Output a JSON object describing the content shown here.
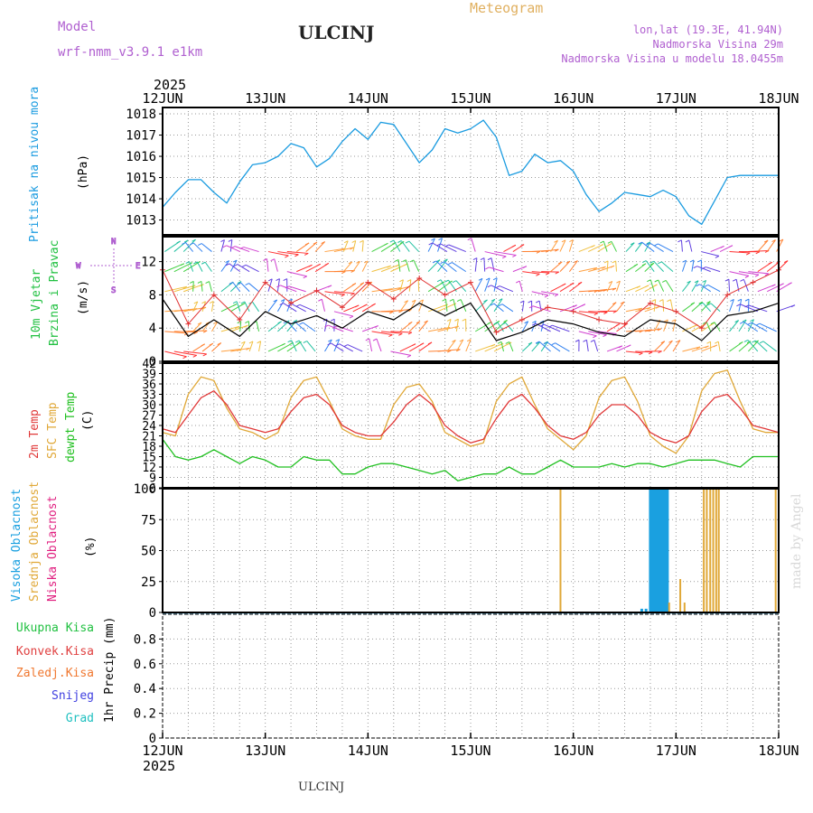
{
  "header": {
    "model_label": "Model",
    "model_name": "wrf-nmm_v3.9.1  e1km",
    "station": "ULCINJ",
    "meteogram": "Meteogram",
    "lonlat": "lon,lat (19.3E, 41.94N)",
    "elevation": "Nadmorska Visina 29m",
    "model_elevation": "Nadmorska Visina u modelu 18.0455m",
    "year_top": "2025",
    "year_bottom": "2025",
    "footer_station": "ULCINJ",
    "watermark": "made by Angel",
    "compass": {
      "n": "N",
      "s": "S",
      "w": "W",
      "e": "E"
    }
  },
  "colors": {
    "pressure": "#1a9be0",
    "wind_speed": "#000000",
    "wind_gust": "#e03030",
    "t2m": "#e03838",
    "sfc": "#e0a838",
    "dewpt": "#20c020",
    "high_cloud": "#1aa0e0",
    "mid_cloud": "#e0a838",
    "low_cloud": "#e02080",
    "rain": "#20c040",
    "conv_rain": "#e04040",
    "frz_rain": "#f07830",
    "snow": "#4040e0",
    "hail": "#20c0c0",
    "compass": "#b060d0",
    "title_purple": "#b060d0"
  },
  "chart_data": [
    {
      "panel": "pressure",
      "type": "line",
      "ylabel_a": "Pritisak na nivou mora",
      "ylabel_unit": "(hPa)",
      "x_ticks": [
        "12JUN",
        "13JUN",
        "14JUN",
        "15JUN",
        "16JUN",
        "17JUN",
        "18JUN"
      ],
      "y_ticks": [
        1013,
        1014,
        1015,
        1016,
        1017,
        1018
      ],
      "ylim": [
        1012.3,
        1018.3
      ],
      "x": [
        0,
        3,
        6,
        9,
        12,
        15,
        18,
        21,
        24,
        27,
        30,
        33,
        36,
        39,
        42,
        45,
        48,
        51,
        54,
        57,
        60,
        63,
        66,
        69,
        72,
        75,
        78,
        81,
        84,
        87,
        90,
        93,
        96,
        99,
        102,
        105,
        108,
        111,
        114,
        117,
        120,
        123,
        126,
        129,
        132,
        135,
        138,
        141,
        144
      ],
      "y": [
        1013.6,
        1014.3,
        1014.9,
        1014.9,
        1014.3,
        1013.8,
        1014.8,
        1015.6,
        1015.7,
        1016.0,
        1016.6,
        1016.4,
        1015.5,
        1015.9,
        1016.7,
        1017.3,
        1016.8,
        1017.6,
        1017.5,
        1016.6,
        1015.7,
        1016.3,
        1017.3,
        1017.1,
        1017.3,
        1017.7,
        1016.9,
        1015.1,
        1015.3,
        1016.1,
        1015.7,
        1015.8,
        1015.3,
        1014.2,
        1013.4,
        1013.8,
        1014.3,
        1014.2,
        1014.1,
        1014.4,
        1014.1,
        1013.2,
        1012.8,
        1013.9,
        1015.0,
        1015.1,
        1015.1,
        1015.1,
        1015.1
      ]
    },
    {
      "panel": "wind",
      "type": "line",
      "ylabel_a": "10m Vjetar",
      "ylabel_b": "Brzina i Pravac",
      "ylabel_unit": "(m/s)",
      "y_ticks": [
        0,
        4,
        8,
        12
      ],
      "ylim": [
        0,
        15
      ],
      "x": [
        0,
        6,
        12,
        18,
        24,
        30,
        36,
        42,
        48,
        54,
        60,
        66,
        72,
        78,
        84,
        90,
        96,
        102,
        108,
        114,
        120,
        126,
        132,
        138,
        144
      ],
      "speed": [
        7.5,
        3.0,
        5.0,
        3.0,
        6.0,
        4.5,
        5.5,
        4.0,
        6.0,
        5.0,
        7.0,
        5.5,
        7.0,
        2.5,
        3.5,
        5.0,
        4.5,
        3.5,
        3.0,
        5.0,
        4.5,
        2.5,
        5.5,
        6.0,
        7.0
      ],
      "gust": [
        11.0,
        4.5,
        8.0,
        5.0,
        9.5,
        7.0,
        8.5,
        6.5,
        9.5,
        7.5,
        10.0,
        8.0,
        9.5,
        3.5,
        5.0,
        6.5,
        6.0,
        5.0,
        4.5,
        7.0,
        6.0,
        4.0,
        8.0,
        9.5,
        11.0
      ]
    },
    {
      "panel": "temperature",
      "type": "line",
      "ylabel_a": "2m Temp",
      "ylabel_b": "SFC Temp",
      "ylabel_c": "dewpt Temp",
      "ylabel_unit": "(C)",
      "y_ticks": [
        6,
        9,
        12,
        15,
        18,
        21,
        24,
        27,
        30,
        33,
        36,
        39,
        42
      ],
      "ylim": [
        6,
        42
      ],
      "x": [
        0,
        3,
        6,
        9,
        12,
        15,
        18,
        21,
        24,
        27,
        30,
        33,
        36,
        39,
        42,
        45,
        48,
        51,
        54,
        57,
        60,
        63,
        66,
        69,
        72,
        75,
        78,
        81,
        84,
        87,
        90,
        93,
        96,
        99,
        102,
        105,
        108,
        111,
        114,
        117,
        120,
        123,
        126,
        129,
        132,
        135,
        138,
        141,
        144
      ],
      "t2m": [
        23,
        22,
        27,
        32,
        34,
        30,
        24,
        23,
        22,
        23,
        28,
        32,
        33,
        30,
        24,
        22,
        21,
        21,
        25,
        30,
        33,
        30,
        24,
        21,
        19,
        20,
        26,
        31,
        33,
        29,
        24,
        21,
        20,
        22,
        27,
        30,
        30,
        27,
        22,
        20,
        19,
        21,
        28,
        32,
        33,
        29,
        24,
        23,
        22
      ],
      "sfc": [
        22,
        21,
        33,
        38,
        37,
        29,
        23,
        22,
        20,
        22,
        32,
        37,
        38,
        31,
        23,
        21,
        20,
        20,
        30,
        35,
        36,
        31,
        22,
        20,
        18,
        19,
        31,
        36,
        38,
        30,
        23,
        20,
        17,
        21,
        32,
        37,
        38,
        31,
        21,
        18,
        16,
        21,
        34,
        39,
        40,
        31,
        23,
        22,
        22
      ],
      "dewpt": [
        20,
        15,
        14,
        15,
        17,
        15,
        13,
        15,
        14,
        12,
        12,
        15,
        14,
        14,
        10,
        10,
        12,
        13,
        13,
        12,
        11,
        10,
        11,
        8,
        9,
        10,
        10,
        12,
        10,
        10,
        12,
        14,
        12,
        12,
        12,
        13,
        12,
        13,
        13,
        12,
        13,
        14,
        14,
        14,
        13,
        12,
        15,
        15,
        15
      ]
    },
    {
      "panel": "cloud",
      "type": "bar",
      "ylabel_a": "Visoka Oblacnost",
      "ylabel_b": "Srednja Oblacnost",
      "ylabel_c": "Niska Oblacnost",
      "ylabel_unit": "(%)",
      "y_ticks": [
        0,
        25,
        50,
        75,
        100
      ],
      "ylim": [
        0,
        100
      ],
      "high_bars": [
        [
          112.0,
          3
        ],
        [
          113.0,
          3
        ],
        [
          114.0,
          100
        ],
        [
          114.4,
          100
        ],
        [
          114.8,
          100
        ],
        [
          115.2,
          100
        ],
        [
          115.6,
          100
        ],
        [
          116.0,
          100
        ],
        [
          116.4,
          100
        ],
        [
          116.8,
          100
        ],
        [
          117.2,
          100
        ],
        [
          117.6,
          100
        ],
        [
          118.0,
          100
        ]
      ],
      "mid_bars": [
        [
          93.0,
          100
        ],
        [
          118.4,
          8
        ],
        [
          121.0,
          27
        ],
        [
          122.0,
          8
        ],
        [
          126.5,
          100
        ],
        [
          127.2,
          100
        ],
        [
          128.0,
          100
        ],
        [
          128.7,
          100
        ],
        [
          129.4,
          100
        ],
        [
          130.0,
          100
        ],
        [
          143.3,
          100
        ],
        [
          144.0,
          100
        ]
      ],
      "low_bars": []
    },
    {
      "panel": "precipitation",
      "type": "bar",
      "ylabel_a": "Ukupna Kisa",
      "ylabel_b": "Konvek.Kisa",
      "ylabel_c": "Zaledj.Kisa",
      "ylabel_d": "Snijeg",
      "ylabel_e": "Grad",
      "ylabel_unit": "1hr Precip (mm)",
      "y_ticks": [
        0,
        0.2,
        0.4,
        0.6,
        0.8
      ],
      "ylim": [
        0,
        1.0
      ],
      "values": []
    }
  ]
}
